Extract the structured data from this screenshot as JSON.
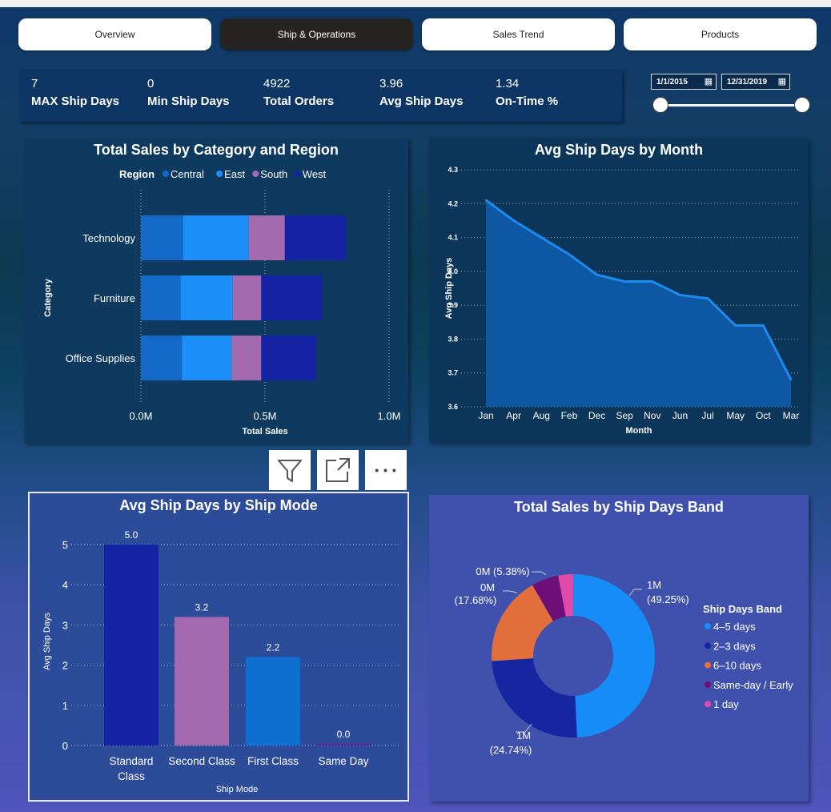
{
  "nav": {
    "tabs": [
      {
        "label": "Overview",
        "active": false
      },
      {
        "label": "Ship & Operations",
        "active": true
      },
      {
        "label": "Sales Trend",
        "active": false
      },
      {
        "label": "Products",
        "active": false
      }
    ]
  },
  "kpis": [
    {
      "value": "7",
      "label": "MAX Ship Days"
    },
    {
      "value": "0",
      "label": "Min Ship Days"
    },
    {
      "value": "4922",
      "label": "Total Orders"
    },
    {
      "value": "3.96",
      "label": "Avg Ship Days"
    },
    {
      "value": "1.34",
      "label": "On-Time %"
    }
  ],
  "date_filter": {
    "start": "1/1/2015",
    "end": "12/31/2019",
    "calendar_icon": "calendar-icon",
    "range_fraction": [
      0,
      1
    ]
  },
  "visual_header": {
    "icons": [
      "filter-icon",
      "focus-mode-icon",
      "more-options-icon"
    ],
    "more_glyph": "• • •"
  },
  "colors": {
    "central": "#1469c8",
    "east": "#1c8ef7",
    "south": "#a36ab0",
    "west": "#1423a3",
    "line": "#1d8af0",
    "area": "#0e5aa8"
  },
  "chart_data": [
    {
      "type": "bar",
      "orientation": "horizontal",
      "stacked": true,
      "title": "Total Sales by Category and Region",
      "legend_title": "Region",
      "categories": [
        "Technology",
        "Furniture",
        "Office Supplies"
      ],
      "series": [
        {
          "name": "Central",
          "color": "#1469c8",
          "values": [
            0.17,
            0.16,
            0.165
          ]
        },
        {
          "name": "East",
          "color": "#1c8ef7",
          "values": [
            0.265,
            0.21,
            0.2
          ]
        },
        {
          "name": "South",
          "color": "#a36ab0",
          "values": [
            0.145,
            0.115,
            0.12
          ]
        },
        {
          "name": "West",
          "color": "#1423a3",
          "values": [
            0.245,
            0.245,
            0.22
          ]
        }
      ],
      "xlabel": "Total Sales",
      "ylabel": "Category",
      "xlim": [
        0,
        1.0
      ],
      "xticks": [
        "0.0M",
        "0.5M",
        "1.0M"
      ]
    },
    {
      "type": "area",
      "title": "Avg Ship Days by Month",
      "categories": [
        "Jan",
        "Apr",
        "Aug",
        "Feb",
        "Dec",
        "Sep",
        "Nov",
        "Jun",
        "Jul",
        "May",
        "Oct",
        "Mar"
      ],
      "values": [
        4.21,
        4.15,
        4.1,
        4.05,
        3.99,
        3.97,
        3.97,
        3.93,
        3.92,
        3.84,
        3.84,
        3.68
      ],
      "xlabel": "Month",
      "ylabel": "Avg Ship Days",
      "ylim": [
        3.6,
        4.3
      ],
      "yticks": [
        "3.6",
        "3.7",
        "3.8",
        "3.9",
        "4.0",
        "4.1",
        "4.2",
        "4.3"
      ]
    },
    {
      "type": "bar",
      "title": "Avg Ship Days by Ship Mode",
      "categories": [
        "Standard Class",
        "Second Class",
        "First Class",
        "Same Day"
      ],
      "category_lines": [
        [
          "Standard",
          "Class"
        ],
        [
          "Second Class"
        ],
        [
          "First Class"
        ],
        [
          "Same Day"
        ]
      ],
      "values": [
        5.0,
        3.2,
        2.2,
        0.0
      ],
      "data_labels": [
        "5.0",
        "3.2",
        "2.2",
        "0.0"
      ],
      "colors": [
        "#1423a3",
        "#a36ab0",
        "#0f6fd0",
        "#6a1f8a"
      ],
      "xlabel": "Ship Mode",
      "ylabel": "Avg Ship Days",
      "ylim": [
        0,
        5
      ],
      "yticks": [
        "0",
        "1",
        "2",
        "3",
        "4",
        "5"
      ]
    },
    {
      "type": "pie",
      "donut": true,
      "title": "Total Sales by Ship Days Band",
      "legend_title": "Ship Days Band",
      "slices": [
        {
          "name": "4–5 days",
          "percent": 49.25,
          "color": "#168cf7",
          "label_top": "1M",
          "label_bottom": "(49.25%)"
        },
        {
          "name": "2–3 days",
          "percent": 24.74,
          "color": "#1626a0",
          "label_top": "1M",
          "label_bottom": "(24.74%)"
        },
        {
          "name": "6–10 days",
          "percent": 17.68,
          "color": "#e3703c",
          "label_top": "0M",
          "label_bottom": "(17.68%)"
        },
        {
          "name": "Same-day / Early",
          "percent": 5.38,
          "color": "#6d0f77",
          "label_top": "0M (5.38%)",
          "label_bottom": ""
        },
        {
          "name": "1 day",
          "percent": 2.95,
          "color": "#e04aa9",
          "label_top": "",
          "label_bottom": ""
        }
      ]
    }
  ]
}
